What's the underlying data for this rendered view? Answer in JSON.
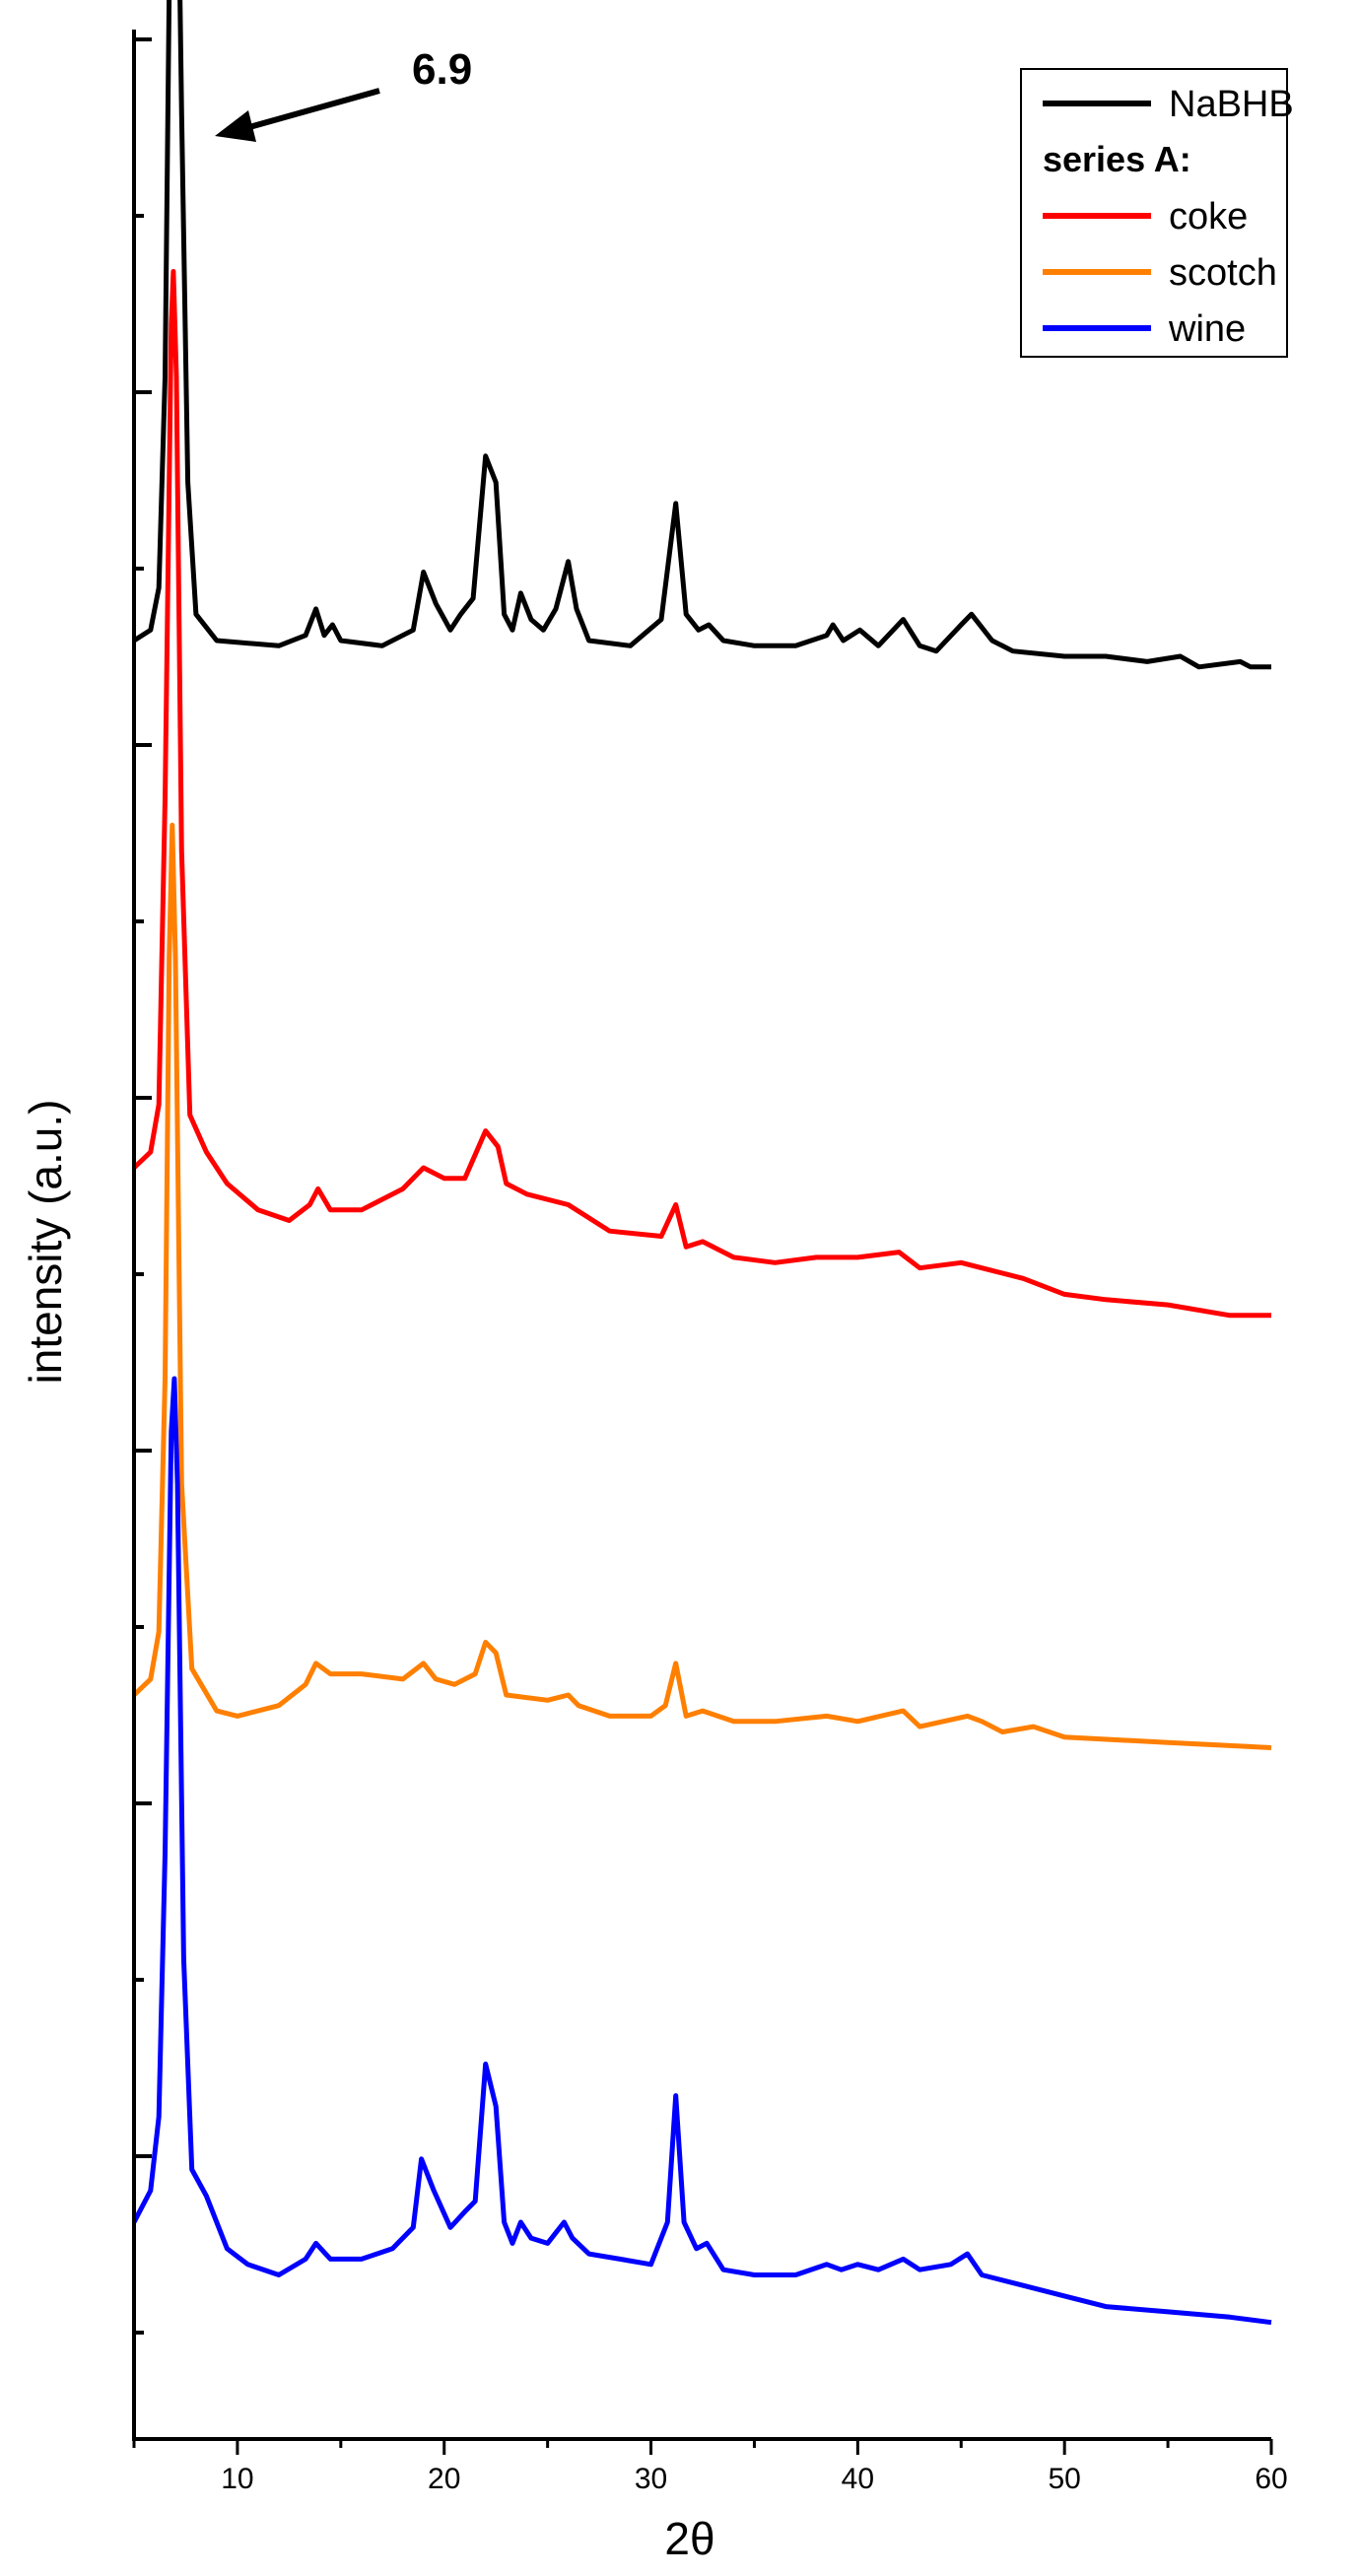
{
  "chart_data": {
    "type": "line",
    "xlabel": "2θ",
    "ylabel": "intensity (a.u.)",
    "xlim": [
      5,
      60
    ],
    "x_ticks": [
      10,
      20,
      30,
      40,
      50,
      60
    ],
    "y_ticks_labeled": false,
    "grid": false,
    "legend_position": "top-right",
    "legend_header": "series A:",
    "annotation": {
      "text": "6.9",
      "x": 6.9
    },
    "series": [
      {
        "name": "NaBHB",
        "color": "#000000",
        "offset": 3.0,
        "points": [
          [
            5,
            0.0
          ],
          [
            5.8,
            0.02
          ],
          [
            6.2,
            0.1
          ],
          [
            6.5,
            0.5
          ],
          [
            6.8,
            1.6
          ],
          [
            6.9,
            1.85
          ],
          [
            7.05,
            1.7
          ],
          [
            7.3,
            1.0
          ],
          [
            7.6,
            0.3
          ],
          [
            8,
            0.05
          ],
          [
            9,
            0.0
          ],
          [
            12,
            -0.01
          ],
          [
            13.3,
            0.01
          ],
          [
            13.8,
            0.06
          ],
          [
            14.2,
            0.01
          ],
          [
            14.6,
            0.03
          ],
          [
            15.0,
            0.0
          ],
          [
            17,
            -0.01
          ],
          [
            18.5,
            0.02
          ],
          [
            19.0,
            0.13
          ],
          [
            19.6,
            0.07
          ],
          [
            20.3,
            0.02
          ],
          [
            20.8,
            0.05
          ],
          [
            21.4,
            0.08
          ],
          [
            22.0,
            0.35
          ],
          [
            22.5,
            0.3
          ],
          [
            22.9,
            0.05
          ],
          [
            23.3,
            0.02
          ],
          [
            23.7,
            0.09
          ],
          [
            24.2,
            0.04
          ],
          [
            24.8,
            0.02
          ],
          [
            25.4,
            0.06
          ],
          [
            26.0,
            0.15
          ],
          [
            26.4,
            0.06
          ],
          [
            27,
            0.0
          ],
          [
            29,
            -0.01
          ],
          [
            30.5,
            0.04
          ],
          [
            31.2,
            0.26
          ],
          [
            31.7,
            0.05
          ],
          [
            32.3,
            0.02
          ],
          [
            32.8,
            0.03
          ],
          [
            33.5,
            0.0
          ],
          [
            35,
            -0.01
          ],
          [
            37,
            -0.01
          ],
          [
            38.5,
            0.01
          ],
          [
            38.8,
            0.03
          ],
          [
            39.3,
            0.0
          ],
          [
            40.1,
            0.02
          ],
          [
            41,
            -0.01
          ],
          [
            42.2,
            0.04
          ],
          [
            43,
            -0.01
          ],
          [
            43.8,
            -0.02
          ],
          [
            45,
            0.03
          ],
          [
            45.5,
            0.05
          ],
          [
            46.5,
            0.0
          ],
          [
            47.5,
            -0.02
          ],
          [
            50,
            -0.03
          ],
          [
            52,
            -0.03
          ],
          [
            54,
            -0.04
          ],
          [
            55.6,
            -0.03
          ],
          [
            56.5,
            -0.05
          ],
          [
            58.5,
            -0.04
          ],
          [
            59,
            -0.05
          ],
          [
            60,
            -0.05
          ]
        ]
      },
      {
        "name": "coke",
        "color": "#ff0000",
        "offset": 2.0,
        "points": [
          [
            5,
            0.0
          ],
          [
            5.8,
            0.03
          ],
          [
            6.2,
            0.12
          ],
          [
            6.5,
            0.7
          ],
          [
            6.8,
            1.6
          ],
          [
            6.9,
            1.7
          ],
          [
            7.05,
            1.5
          ],
          [
            7.3,
            0.6
          ],
          [
            7.7,
            0.1
          ],
          [
            8.5,
            0.03
          ],
          [
            9.5,
            -0.03
          ],
          [
            11,
            -0.08
          ],
          [
            12.5,
            -0.1
          ],
          [
            13.5,
            -0.07
          ],
          [
            13.9,
            -0.04
          ],
          [
            14.5,
            -0.08
          ],
          [
            16,
            -0.08
          ],
          [
            18,
            -0.04
          ],
          [
            19.0,
            0.0
          ],
          [
            20,
            -0.02
          ],
          [
            21,
            -0.02
          ],
          [
            22.0,
            0.07
          ],
          [
            22.6,
            0.04
          ],
          [
            23,
            -0.03
          ],
          [
            24,
            -0.05
          ],
          [
            26,
            -0.07
          ],
          [
            28,
            -0.12
          ],
          [
            30.5,
            -0.13
          ],
          [
            31.2,
            -0.07
          ],
          [
            31.7,
            -0.15
          ],
          [
            32.5,
            -0.14
          ],
          [
            34,
            -0.17
          ],
          [
            36,
            -0.18
          ],
          [
            38,
            -0.17
          ],
          [
            40,
            -0.17
          ],
          [
            42,
            -0.16
          ],
          [
            43,
            -0.19
          ],
          [
            45,
            -0.18
          ],
          [
            46,
            -0.19
          ],
          [
            48,
            -0.21
          ],
          [
            50,
            -0.24
          ],
          [
            52,
            -0.25
          ],
          [
            55,
            -0.26
          ],
          [
            58,
            -0.28
          ],
          [
            60,
            -0.28
          ]
        ]
      },
      {
        "name": "scotch",
        "color": "#ff7f00",
        "offset": 1.0,
        "points": [
          [
            5,
            0.0
          ],
          [
            5.8,
            0.03
          ],
          [
            6.2,
            0.12
          ],
          [
            6.5,
            0.6
          ],
          [
            6.7,
            1.4
          ],
          [
            6.85,
            1.65
          ],
          [
            7.0,
            1.4
          ],
          [
            7.3,
            0.4
          ],
          [
            7.8,
            0.05
          ],
          [
            9,
            -0.03
          ],
          [
            10,
            -0.04
          ],
          [
            12,
            -0.02
          ],
          [
            13.3,
            0.02
          ],
          [
            13.8,
            0.06
          ],
          [
            14.5,
            0.04
          ],
          [
            16,
            0.04
          ],
          [
            18,
            0.03
          ],
          [
            19.0,
            0.06
          ],
          [
            19.6,
            0.03
          ],
          [
            20.5,
            0.02
          ],
          [
            21.5,
            0.04
          ],
          [
            22.0,
            0.1
          ],
          [
            22.5,
            0.08
          ],
          [
            23,
            0.0
          ],
          [
            25,
            -0.01
          ],
          [
            26.0,
            0.0
          ],
          [
            26.5,
            -0.02
          ],
          [
            28,
            -0.04
          ],
          [
            30,
            -0.04
          ],
          [
            30.7,
            -0.02
          ],
          [
            31.2,
            0.06
          ],
          [
            31.7,
            -0.04
          ],
          [
            32.5,
            -0.03
          ],
          [
            34,
            -0.05
          ],
          [
            36,
            -0.05
          ],
          [
            38.5,
            -0.04
          ],
          [
            40,
            -0.05
          ],
          [
            42.2,
            -0.03
          ],
          [
            43,
            -0.06
          ],
          [
            45.3,
            -0.04
          ],
          [
            46,
            -0.05
          ],
          [
            47,
            -0.07
          ],
          [
            48.5,
            -0.06
          ],
          [
            50,
            -0.08
          ],
          [
            55,
            -0.09
          ],
          [
            60,
            -0.1
          ]
        ]
      },
      {
        "name": "wine",
        "color": "#0000ff",
        "offset": 0.0,
        "points": [
          [
            5,
            0.0
          ],
          [
            5.8,
            0.06
          ],
          [
            6.2,
            0.2
          ],
          [
            6.5,
            0.7
          ],
          [
            6.8,
            1.5
          ],
          [
            6.95,
            1.6
          ],
          [
            7.1,
            1.4
          ],
          [
            7.4,
            0.5
          ],
          [
            7.8,
            0.1
          ],
          [
            8.5,
            0.05
          ],
          [
            9.5,
            -0.05
          ],
          [
            10.5,
            -0.08
          ],
          [
            12,
            -0.1
          ],
          [
            13.3,
            -0.07
          ],
          [
            13.8,
            -0.04
          ],
          [
            14.5,
            -0.07
          ],
          [
            16,
            -0.07
          ],
          [
            17.5,
            -0.05
          ],
          [
            18.5,
            -0.01
          ],
          [
            18.9,
            0.12
          ],
          [
            19.5,
            0.06
          ],
          [
            20.3,
            -0.01
          ],
          [
            21,
            0.02
          ],
          [
            21.5,
            0.04
          ],
          [
            22.0,
            0.3
          ],
          [
            22.5,
            0.22
          ],
          [
            22.9,
            0.0
          ],
          [
            23.3,
            -0.04
          ],
          [
            23.7,
            0.0
          ],
          [
            24.2,
            -0.03
          ],
          [
            25,
            -0.04
          ],
          [
            25.8,
            0.0
          ],
          [
            26.2,
            -0.03
          ],
          [
            27,
            -0.06
          ],
          [
            28.5,
            -0.07
          ],
          [
            30,
            -0.08
          ],
          [
            30.8,
            0.0
          ],
          [
            31.2,
            0.24
          ],
          [
            31.6,
            0.0
          ],
          [
            32.2,
            -0.05
          ],
          [
            32.7,
            -0.04
          ],
          [
            33.5,
            -0.09
          ],
          [
            35,
            -0.1
          ],
          [
            37,
            -0.1
          ],
          [
            38.5,
            -0.08
          ],
          [
            39.2,
            -0.09
          ],
          [
            40,
            -0.08
          ],
          [
            41,
            -0.09
          ],
          [
            42.2,
            -0.07
          ],
          [
            43,
            -0.09
          ],
          [
            44.5,
            -0.08
          ],
          [
            45.3,
            -0.06
          ],
          [
            46,
            -0.1
          ],
          [
            48,
            -0.12
          ],
          [
            50,
            -0.14
          ],
          [
            52,
            -0.16
          ],
          [
            55,
            -0.17
          ],
          [
            58,
            -0.18
          ],
          [
            60,
            -0.19
          ]
        ]
      }
    ]
  }
}
